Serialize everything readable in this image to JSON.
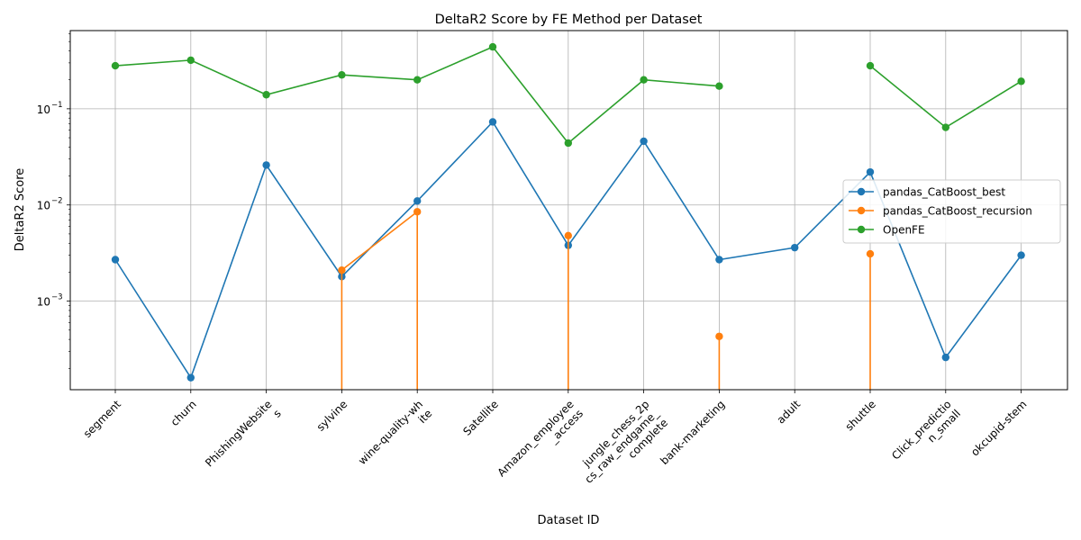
{
  "chart_data": {
    "type": "line",
    "title": "DeltaR2 Score by FE Method per Dataset",
    "xlabel": "Dataset ID",
    "ylabel": "DeltaR2 Score",
    "yscale": "log",
    "ylim": [
      0.00012,
      0.65
    ],
    "grid": true,
    "legend_position": "center-right",
    "categories": [
      [
        "segment"
      ],
      [
        "churn"
      ],
      [
        "PhishingWebsite",
        "s"
      ],
      [
        "sylvine"
      ],
      [
        "wine-quality-wh",
        "ite"
      ],
      [
        "Satellite"
      ],
      [
        "Amazon_employee",
        "_access"
      ],
      [
        "jungle_chess_2p",
        "cs_raw_endgame_",
        "complete"
      ],
      [
        "bank-marketing"
      ],
      [
        "adult"
      ],
      [
        "shuttle"
      ],
      [
        "Click_predictio",
        "n_small"
      ],
      [
        "okcupid-stem"
      ]
    ],
    "yticks": [
      {
        "value": 0.001,
        "label": "10",
        "exp": "−3"
      },
      {
        "value": 0.01,
        "label": "10",
        "exp": "−2"
      },
      {
        "value": 0.1,
        "label": "10",
        "exp": "−1"
      }
    ],
    "series": [
      {
        "name": "pandas_CatBoost_best",
        "color": "#1f77b4",
        "values": [
          0.0027,
          0.00016,
          0.026,
          0.0018,
          0.011,
          0.073,
          0.0038,
          0.046,
          0.0027,
          0.0036,
          0.022,
          0.00026,
          0.003
        ]
      },
      {
        "name": "pandas_CatBoost_recursion",
        "color": "#ff7f0e",
        "values": [
          null,
          null,
          null,
          0.0021,
          0.0085,
          null,
          0.0048,
          null,
          0.00043,
          null,
          0.0031,
          null,
          null
        ],
        "drop_lines": [
          3,
          4,
          6,
          8,
          10
        ]
      },
      {
        "name": "OpenFE",
        "color": "#2ca02c",
        "values": [
          0.28,
          0.32,
          0.14,
          0.225,
          0.2,
          0.44,
          0.044,
          0.2,
          0.172,
          null,
          0.28,
          0.064,
          0.193
        ]
      }
    ]
  }
}
